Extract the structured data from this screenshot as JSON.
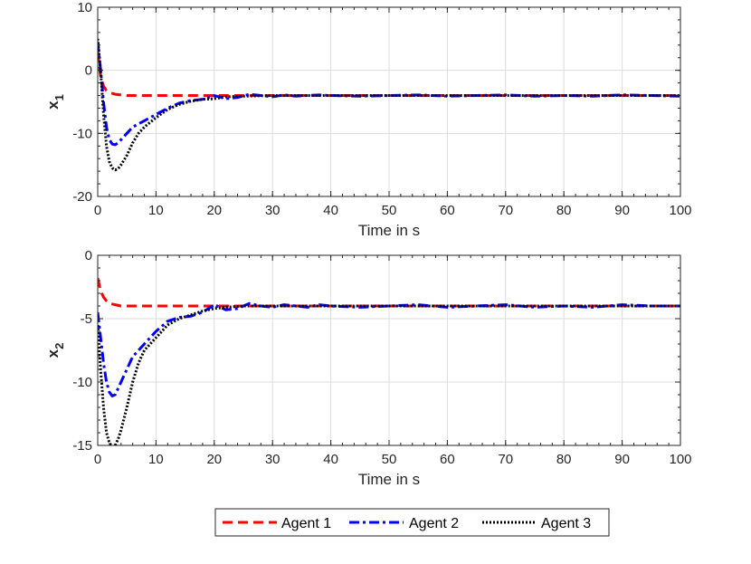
{
  "colors": {
    "agent1": "#ff0000",
    "agent2": "#0000ff",
    "agent3": "#000000",
    "grid": "#dddddd",
    "axis": "#262626"
  },
  "legend": {
    "placement": "bottom-center",
    "entries": [
      "Agent 1",
      "Agent 2",
      "Agent 3"
    ]
  },
  "chart_data": [
    {
      "type": "line",
      "xlabel": "Time in s",
      "ylabel_main": "x",
      "ylabel_sub": "1",
      "xlim": [
        0,
        100
      ],
      "ylim": [
        -20,
        10
      ],
      "xticks": [
        0,
        10,
        20,
        30,
        40,
        50,
        60,
        70,
        80,
        90,
        100
      ],
      "yticks": [
        -20,
        -10,
        0,
        10
      ],
      "grid": true,
      "series": [
        {
          "name": "Agent 1",
          "x": [
            0,
            0.5,
            1,
            1.5,
            2,
            3,
            4,
            5,
            6,
            8,
            10,
            15,
            20,
            30,
            40,
            50,
            60,
            70,
            80,
            90,
            100
          ],
          "y": [
            3,
            -1,
            -2.5,
            -3.2,
            -3.5,
            -3.8,
            -3.9,
            -4,
            -4,
            -4,
            -4,
            -4,
            -4,
            -4,
            -4,
            -4,
            -4,
            -4,
            -4,
            -4,
            -4
          ]
        },
        {
          "name": "Agent 2",
          "x": [
            0,
            0.5,
            1,
            1.5,
            2,
            2.5,
            3,
            3.5,
            4,
            5,
            6,
            7,
            8,
            10,
            12,
            14,
            16,
            18,
            20,
            22,
            24,
            26,
            28,
            30,
            32,
            34,
            36,
            38,
            40,
            45,
            50,
            55,
            60,
            65,
            70,
            75,
            80,
            85,
            90,
            95,
            100
          ],
          "y": [
            4.5,
            0,
            -5,
            -9,
            -11,
            -11.7,
            -11.8,
            -11.5,
            -11,
            -10,
            -9,
            -8.5,
            -8,
            -7,
            -6,
            -5.2,
            -4.8,
            -4.6,
            -4,
            -4.5,
            -4.3,
            -3.8,
            -4,
            -4.2,
            -3.9,
            -4.1,
            -4,
            -3.9,
            -4,
            -4.1,
            -4,
            -3.9,
            -4.1,
            -4,
            -3.9,
            -4.1,
            -4,
            -4.1,
            -3.9,
            -4,
            -4.1
          ]
        },
        {
          "name": "Agent 3",
          "x": [
            0,
            0.5,
            1,
            1.5,
            2,
            2.5,
            3,
            3.5,
            4,
            5,
            6,
            7,
            8,
            10,
            12,
            14,
            16,
            18,
            20,
            22,
            25,
            30,
            35,
            40,
            45,
            50,
            55,
            60,
            65,
            70,
            75,
            80,
            85,
            90,
            95,
            100
          ],
          "y": [
            5,
            0,
            -7,
            -12,
            -14.5,
            -15.5,
            -15.8,
            -15.6,
            -15,
            -13.5,
            -11.5,
            -10,
            -9,
            -7.5,
            -6.2,
            -5.4,
            -4.9,
            -4.6,
            -4.5,
            -4.2,
            -4.1,
            -4,
            -4,
            -4,
            -4,
            -4,
            -4,
            -4,
            -4,
            -4,
            -4,
            -4,
            -4,
            -4,
            -4,
            -4
          ]
        }
      ]
    },
    {
      "type": "line",
      "xlabel": "Time in s",
      "ylabel_main": "x",
      "ylabel_sub": "2",
      "xlim": [
        0,
        100
      ],
      "ylim": [
        -15,
        0
      ],
      "xticks": [
        0,
        10,
        20,
        30,
        40,
        50,
        60,
        70,
        80,
        90,
        100
      ],
      "yticks": [
        -15,
        -10,
        -5,
        0
      ],
      "grid": true,
      "series": [
        {
          "name": "Agent 1",
          "x": [
            0,
            0.5,
            1,
            1.5,
            2,
            3,
            4,
            5,
            6,
            8,
            10,
            15,
            20,
            30,
            40,
            50,
            60,
            70,
            80,
            90,
            100
          ],
          "y": [
            -1.8,
            -2.8,
            -3.3,
            -3.6,
            -3.8,
            -3.9,
            -4,
            -4,
            -4,
            -4,
            -4,
            -4,
            -4,
            -4,
            -4,
            -4,
            -4,
            -4,
            -4,
            -4,
            -4
          ]
        },
        {
          "name": "Agent 2",
          "x": [
            0,
            0.5,
            1,
            1.5,
            2,
            2.5,
            3,
            3.5,
            4,
            5,
            6,
            7,
            8,
            10,
            12,
            14,
            16,
            18,
            20,
            22,
            24,
            26,
            28,
            30,
            32,
            34,
            36,
            38,
            40,
            45,
            50,
            55,
            60,
            65,
            70,
            75,
            80,
            85,
            90,
            95,
            100
          ],
          "y": [
            -4.5,
            -6.5,
            -8.5,
            -10,
            -10.8,
            -11.1,
            -11,
            -10.5,
            -10,
            -9,
            -8,
            -7.5,
            -7,
            -6,
            -5.2,
            -4.9,
            -4.8,
            -4.5,
            -3.9,
            -4.3,
            -4.2,
            -3.8,
            -4,
            -4.1,
            -3.9,
            -4,
            -4.1,
            -3.9,
            -4,
            -4.1,
            -4,
            -3.9,
            -4.1,
            -4,
            -3.9,
            -4.1,
            -4,
            -4.1,
            -3.9,
            -4,
            -4
          ]
        },
        {
          "name": "Agent 3",
          "x": [
            0,
            0.5,
            1,
            1.5,
            2,
            2.5,
            3,
            3.5,
            4,
            5,
            6,
            7,
            8,
            10,
            12,
            14,
            16,
            18,
            20,
            22,
            25,
            30,
            35,
            40,
            45,
            50,
            55,
            60,
            65,
            70,
            75,
            80,
            85,
            90,
            95,
            100
          ],
          "y": [
            -5.5,
            -9,
            -12,
            -14,
            -14.8,
            -15.1,
            -15,
            -14.5,
            -13.8,
            -12,
            -10,
            -8.5,
            -7.5,
            -6.5,
            -5.5,
            -5,
            -4.7,
            -4.4,
            -4.2,
            -4.1,
            -4,
            -4,
            -4,
            -4,
            -4,
            -4,
            -4,
            -4,
            -4,
            -4,
            -4,
            -4,
            -4,
            -4,
            -4,
            -4
          ]
        }
      ]
    }
  ]
}
